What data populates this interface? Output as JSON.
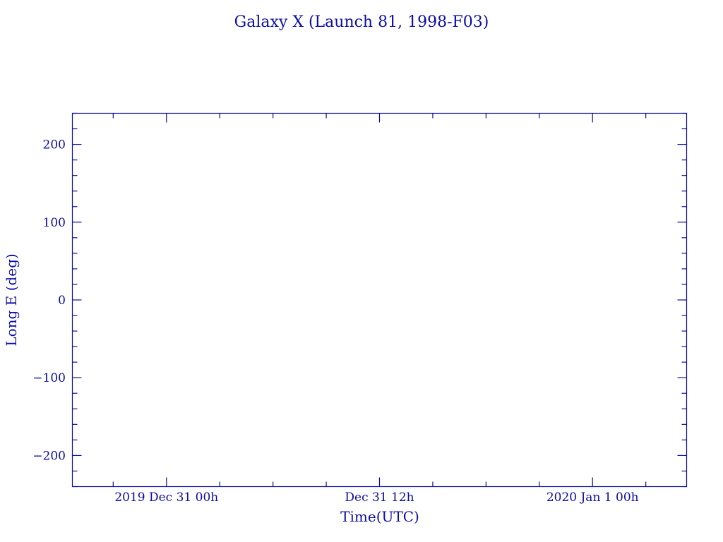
{
  "chart_data": {
    "type": "line",
    "title": "Galaxy X (Launch 81, 1998-F03)",
    "xlabel": "Time(UTC)",
    "ylabel": "Long E (deg)",
    "xlim_hours_from_2019_dec_31_00h": [
      -5.3,
      29.3
    ],
    "x_major_ticks": [
      {
        "hours": 0,
        "label": "2019 Dec 31  00h"
      },
      {
        "hours": 12,
        "label": "Dec 31  12h"
      },
      {
        "hours": 24,
        "label": "2020 Jan  1  00h"
      }
    ],
    "x_minor_tick_interval_hours": 3,
    "ylim": [
      -240,
      240
    ],
    "y_major_ticks": [
      200,
      100,
      0,
      -100,
      -200
    ],
    "y_tick_labels": [
      "200",
      "100",
      "0",
      "−100",
      "−200"
    ],
    "y_minor_tick_interval": 20,
    "series": [],
    "grid": false,
    "color": "#0c0ca8"
  }
}
